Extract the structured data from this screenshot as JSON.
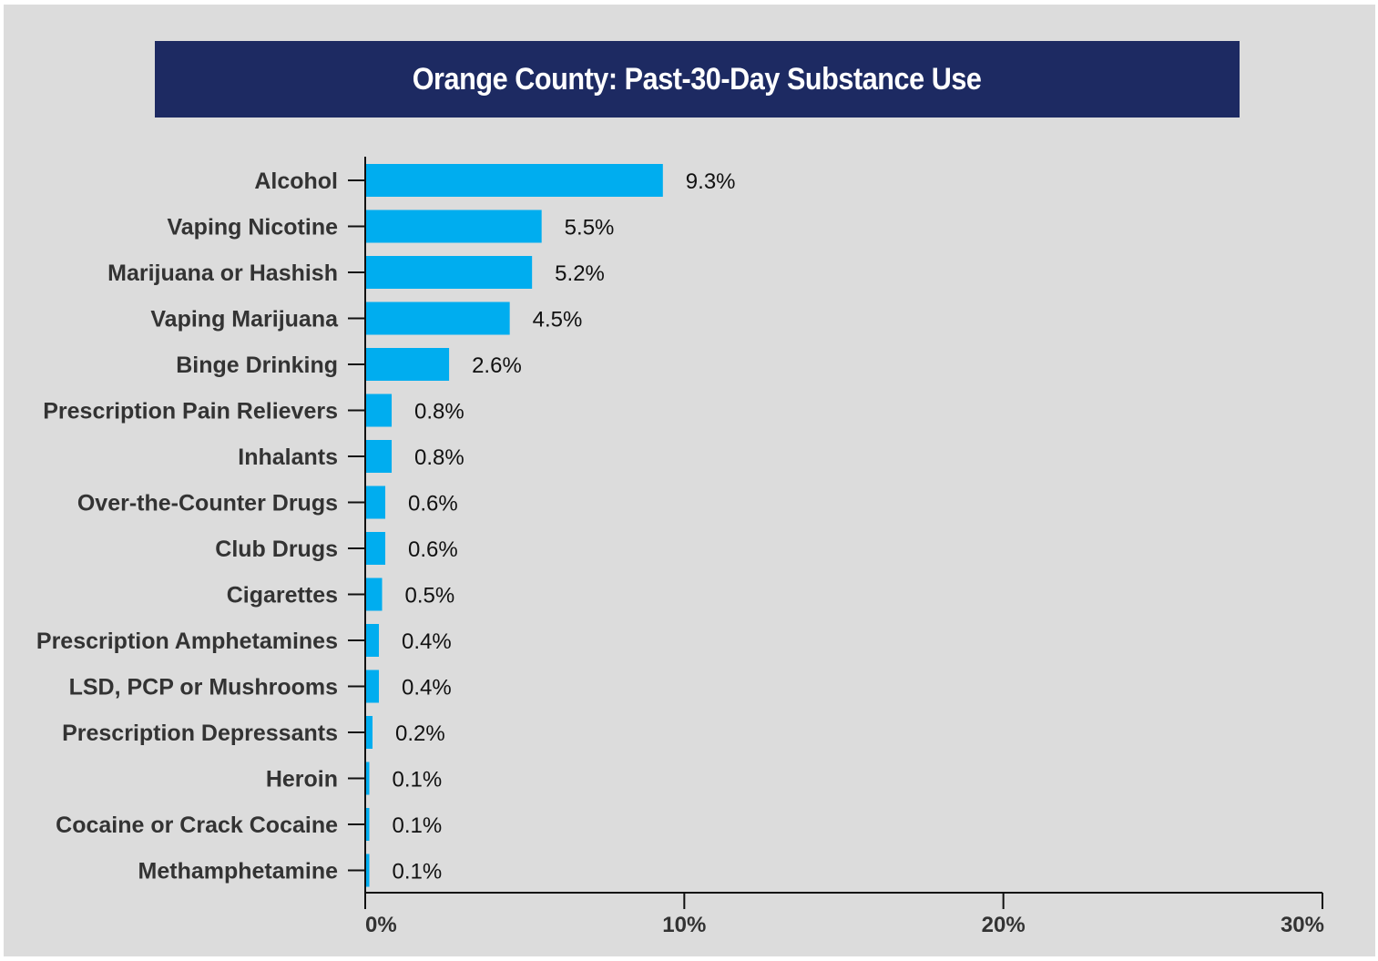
{
  "chart_data": {
    "type": "bar",
    "orientation": "horizontal",
    "title": "Orange County: Past-30-Day Substance Use",
    "categories": [
      "Alcohol",
      "Vaping Nicotine",
      "Marijuana or Hashish",
      "Vaping Marijuana",
      "Binge Drinking",
      "Prescription Pain Relievers",
      "Inhalants",
      "Over-the-Counter Drugs",
      "Club Drugs",
      "Cigarettes",
      "Prescription Amphetamines",
      "LSD, PCP or Mushrooms",
      "Prescription Depressants",
      "Heroin",
      "Cocaine or Crack Cocaine",
      "Methamphetamine"
    ],
    "values": [
      9.3,
      5.5,
      5.2,
      4.5,
      2.6,
      0.8,
      0.8,
      0.6,
      0.6,
      0.5,
      0.4,
      0.4,
      0.2,
      0.1,
      0.1,
      0.1
    ],
    "value_labels": [
      "9.3%",
      "5.5%",
      "5.2%",
      "4.5%",
      "2.6%",
      "0.8%",
      "0.8%",
      "0.6%",
      "0.6%",
      "0.5%",
      "0.4%",
      "0.4%",
      "0.2%",
      "0.1%",
      "0.1%",
      "0.1%"
    ],
    "xlim": [
      0,
      30
    ],
    "x_ticks": [
      0,
      10,
      20,
      30
    ],
    "x_tick_labels": [
      "0%",
      "10%",
      "20%",
      "30%"
    ],
    "grid": false,
    "colors": {
      "bar": "#00adef",
      "title_background": "#1d2a62",
      "title_text": "#ffffff",
      "panel_background": "#dcdcdc",
      "axis": "#111111"
    }
  }
}
